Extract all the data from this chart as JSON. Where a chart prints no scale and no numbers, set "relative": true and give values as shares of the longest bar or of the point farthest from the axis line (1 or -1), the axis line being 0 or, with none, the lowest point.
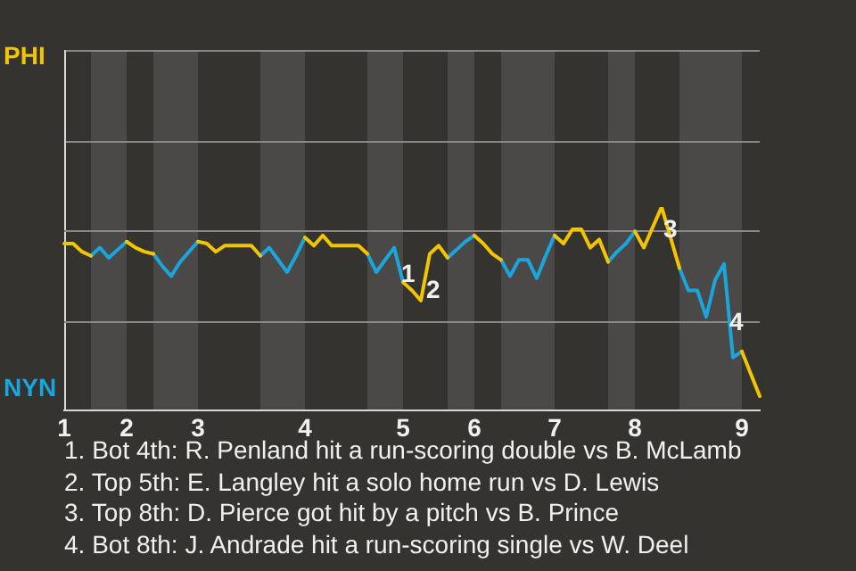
{
  "chart_data": {
    "type": "line",
    "relative": true,
    "categories": [
      "1",
      null,
      null,
      null,
      null,
      null,
      null,
      "2",
      null,
      null,
      null,
      null,
      null,
      null,
      null,
      "3",
      null,
      null,
      null,
      null,
      null,
      null,
      null,
      null,
      null,
      null,
      null,
      "4",
      null,
      null,
      null,
      null,
      null,
      null,
      null,
      null,
      null,
      null,
      "5",
      null,
      null,
      null,
      null,
      null,
      null,
      null,
      "6",
      null,
      null,
      null,
      null,
      null,
      null,
      null,
      null,
      "7",
      null,
      null,
      null,
      null,
      null,
      null,
      null,
      null,
      "8",
      null,
      null,
      null,
      null,
      null,
      null,
      null,
      null,
      null,
      null,
      null,
      "9",
      null,
      null
    ],
    "series": [
      {
        "name": "PHI",
        "color": "#f2c500",
        "values": [
          0.82,
          0.82,
          0.78,
          0.76,
          null,
          null,
          null,
          0.83,
          0.8,
          0.78,
          0.77,
          null,
          null,
          null,
          null,
          0.83,
          0.82,
          0.78,
          0.81,
          0.81,
          0.81,
          0.81,
          0.76,
          null,
          null,
          null,
          null,
          0.85,
          0.81,
          0.86,
          0.81,
          0.81,
          0.81,
          0.81,
          0.77,
          null,
          null,
          null,
          0.63,
          0.59,
          0.54,
          0.77,
          0.81,
          0.75,
          null,
          null,
          0.86,
          0.82,
          0.77,
          0.74,
          null,
          null,
          null,
          null,
          null,
          0.86,
          0.82,
          0.89,
          0.89,
          0.8,
          0.84,
          0.73,
          null,
          null,
          0.88,
          0.8,
          0.9,
          1,
          0.85,
          0.7,
          null,
          null,
          null,
          null,
          null,
          null,
          0.29,
          0.18,
          0.07
        ]
      },
      {
        "name": "NYN",
        "color": "#1aa6dc",
        "values": [
          null,
          null,
          null,
          0.76,
          0.8,
          0.75,
          0.79,
          0.83,
          null,
          null,
          0.77,
          0.71,
          0.66,
          0.73,
          0.78,
          0.83,
          null,
          null,
          null,
          null,
          null,
          null,
          0.76,
          0.8,
          0.74,
          0.68,
          0.76,
          0.85,
          null,
          null,
          null,
          null,
          null,
          null,
          0.77,
          0.68,
          0.74,
          0.8,
          0.63,
          null,
          null,
          null,
          null,
          0.75,
          0.79,
          0.83,
          0.86,
          null,
          null,
          0.74,
          0.66,
          0.74,
          0.74,
          0.65,
          0.76,
          0.86,
          null,
          null,
          null,
          null,
          null,
          0.73,
          0.78,
          0.82,
          0.88,
          null,
          null,
          null,
          null,
          0.7,
          0.59,
          0.59,
          0.46,
          0.64,
          0.72,
          0.26,
          0.29,
          null,
          null
        ]
      }
    ],
    "legend": "left",
    "ref_lines": [
      {
        "axis": "y",
        "value": 0.44,
        "color": "#8a8886"
      },
      {
        "axis": "y",
        "value": 0.89,
        "color": "#8a8886"
      }
    ],
    "annotations": [
      "1",
      "2",
      "3",
      "4",
      "1. Bot 4th: R. Penland hit a run-scoring double vs B. McLamb",
      "2. Top 5th: E. Langley hit a solo home run vs D. Lewis",
      "3. Top 8th: D. Pierce got hit by a pitch vs B. Prince",
      "4. Bot 8th: J. Andrade hit a run-scoring single vs W. Deel"
    ]
  }
}
